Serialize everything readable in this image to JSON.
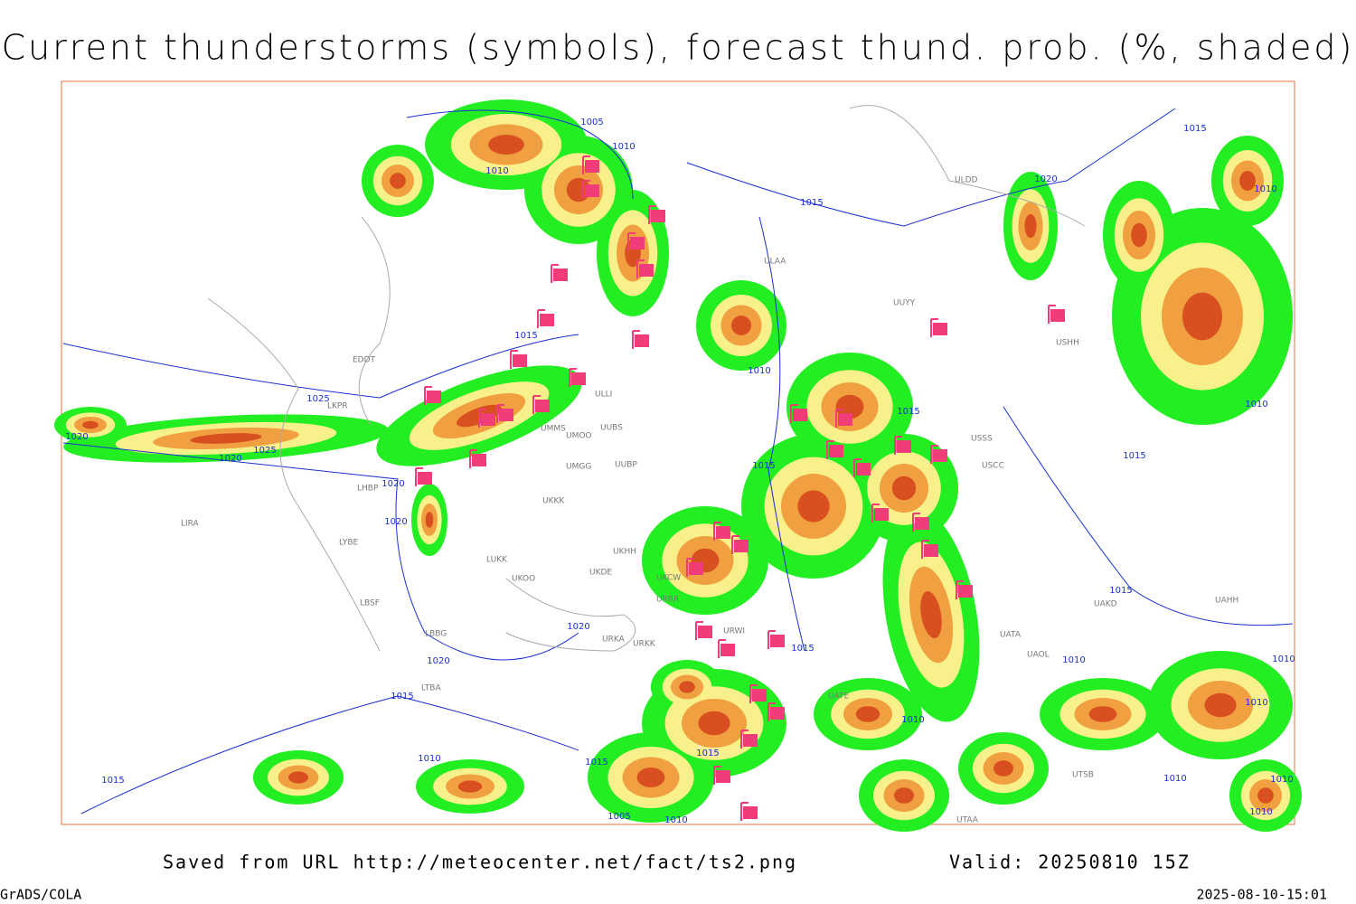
{
  "title": "Current thunderstorms (symbols), forecast thund. prob. (%, shaded)",
  "footer": {
    "source": "Saved from URL http://meteocenter.net/fact/ts2.png",
    "valid": "Valid: 20250810 15Z",
    "software": "GrADS/COLA",
    "timestamp": "2025-08-10-15:01"
  },
  "isobar_labels": [
    1005,
    1010,
    1010,
    1015,
    1020,
    1015,
    1010,
    1015,
    1010,
    1025,
    1020,
    1025,
    1020,
    1020,
    1020,
    1020,
    1020,
    1015,
    1015,
    1015,
    1015,
    1015,
    1015,
    1010,
    1010,
    1010,
    1010,
    1010,
    1010,
    1015,
    1015,
    1015,
    1005,
    1010,
    1010,
    1010,
    1010
  ],
  "stations": [
    "EDDT",
    "LKPR",
    "LHBP",
    "LIRA",
    "LYBE",
    "LBSF",
    "LBBG",
    "LTBA",
    "UMMS",
    "UMOO",
    "UMGG",
    "UUBS",
    "UUBP",
    "UKKK",
    "UKHH",
    "UKDE",
    "LUKK",
    "UKOO",
    "URKA",
    "URKK",
    "URWI",
    "URRR",
    "UKCW",
    "ULLI",
    "ULAA",
    "UUYY",
    "USHH",
    "USSS",
    "USCC",
    "UATA",
    "UAOL",
    "UAKD",
    "UAHH",
    "UTAA",
    "UTSB",
    "UATE",
    "ULDD"
  ]
}
